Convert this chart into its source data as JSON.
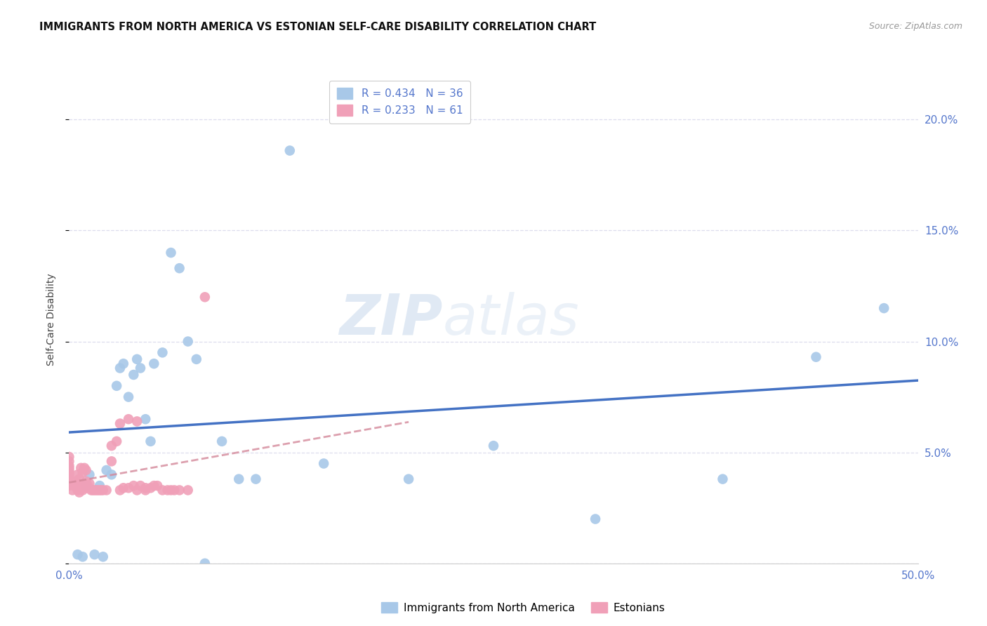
{
  "title": "IMMIGRANTS FROM NORTH AMERICA VS ESTONIAN SELF-CARE DISABILITY CORRELATION CHART",
  "source": "Source: ZipAtlas.com",
  "ylabel": "Self-Care Disability",
  "xlim": [
    0.0,
    0.5
  ],
  "ylim": [
    0.0,
    0.22
  ],
  "blue_R": "0.434",
  "blue_N": "36",
  "pink_R": "0.233",
  "pink_N": "61",
  "legend_label_blue": "Immigrants from North America",
  "legend_label_pink": "Estonians",
  "blue_color": "#A8C8E8",
  "pink_color": "#F0A0B8",
  "line_blue_color": "#4472C4",
  "line_pink_color": "#D4889A",
  "background_color": "#FFFFFF",
  "watermark_color": "#C8D8EC",
  "grid_color": "#DDDDEE",
  "tick_label_color": "#5577CC",
  "title_color": "#111111",
  "source_color": "#999999",
  "ylabel_color": "#444444",
  "blue_scatter_x": [
    0.005,
    0.008,
    0.01,
    0.012,
    0.015,
    0.018,
    0.02,
    0.022,
    0.025,
    0.028,
    0.03,
    0.032,
    0.035,
    0.038,
    0.04,
    0.042,
    0.045,
    0.048,
    0.05,
    0.055,
    0.06,
    0.065,
    0.07,
    0.075,
    0.08,
    0.09,
    0.1,
    0.11,
    0.13,
    0.15,
    0.2,
    0.25,
    0.31,
    0.385,
    0.44,
    0.48
  ],
  "blue_scatter_y": [
    0.004,
    0.003,
    0.035,
    0.04,
    0.004,
    0.035,
    0.003,
    0.042,
    0.04,
    0.08,
    0.088,
    0.09,
    0.075,
    0.085,
    0.092,
    0.088,
    0.065,
    0.055,
    0.09,
    0.095,
    0.14,
    0.133,
    0.1,
    0.092,
    0.0,
    0.055,
    0.038,
    0.038,
    0.186,
    0.045,
    0.038,
    0.053,
    0.02,
    0.038,
    0.093,
    0.115
  ],
  "pink_scatter_x": [
    0.0,
    0.0,
    0.0,
    0.0,
    0.0,
    0.0,
    0.0,
    0.0,
    0.0,
    0.0,
    0.002,
    0.003,
    0.004,
    0.005,
    0.005,
    0.006,
    0.006,
    0.007,
    0.007,
    0.008,
    0.008,
    0.009,
    0.009,
    0.01,
    0.01,
    0.01,
    0.011,
    0.012,
    0.013,
    0.014,
    0.015,
    0.016,
    0.017,
    0.018,
    0.019,
    0.02,
    0.022,
    0.025,
    0.025,
    0.028,
    0.03,
    0.03,
    0.032,
    0.035,
    0.035,
    0.038,
    0.04,
    0.04,
    0.042,
    0.045,
    0.045,
    0.048,
    0.05,
    0.052,
    0.055,
    0.058,
    0.06,
    0.062,
    0.065,
    0.07,
    0.08
  ],
  "pink_scatter_y": [
    0.035,
    0.037,
    0.038,
    0.04,
    0.041,
    0.042,
    0.043,
    0.044,
    0.046,
    0.048,
    0.033,
    0.035,
    0.037,
    0.033,
    0.04,
    0.032,
    0.038,
    0.034,
    0.043,
    0.033,
    0.041,
    0.035,
    0.043,
    0.034,
    0.037,
    0.042,
    0.035,
    0.036,
    0.033,
    0.033,
    0.033,
    0.033,
    0.033,
    0.033,
    0.033,
    0.033,
    0.033,
    0.046,
    0.053,
    0.055,
    0.033,
    0.063,
    0.034,
    0.034,
    0.065,
    0.035,
    0.033,
    0.064,
    0.035,
    0.033,
    0.034,
    0.034,
    0.035,
    0.035,
    0.033,
    0.033,
    0.033,
    0.033,
    0.033,
    0.033,
    0.12
  ],
  "blue_line_x": [
    0.0,
    0.5
  ],
  "pink_line_x": [
    0.0,
    0.2
  ],
  "yticks": [
    0.0,
    0.05,
    0.1,
    0.15,
    0.2
  ],
  "ytick_labels_right": [
    "",
    "5.0%",
    "10.0%",
    "15.0%",
    "20.0%"
  ],
  "xticks": [
    0.0,
    0.1,
    0.2,
    0.3,
    0.4,
    0.5
  ]
}
